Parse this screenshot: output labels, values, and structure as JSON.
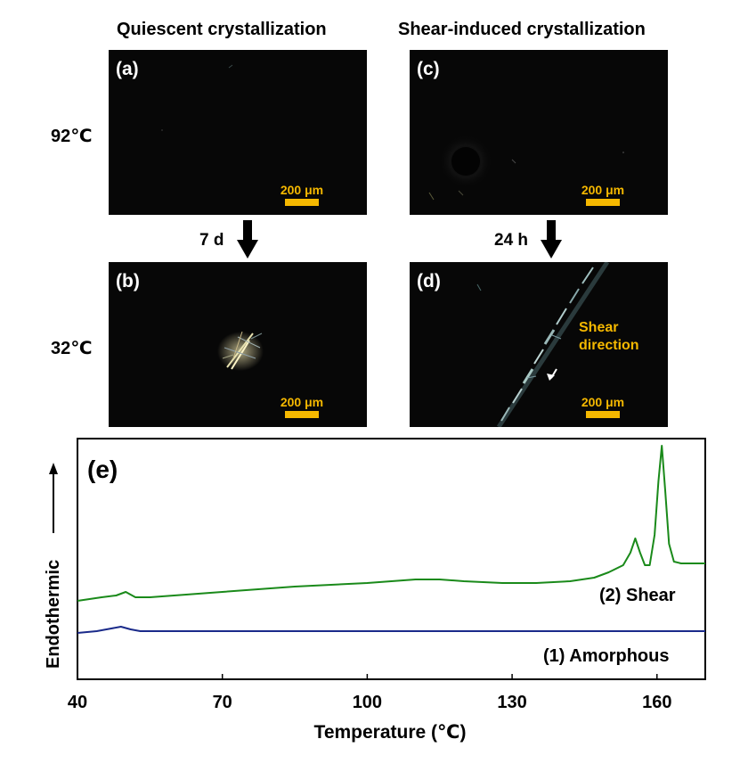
{
  "micrographs": {
    "col_titles": {
      "quiescent": "Quiescent crystallization",
      "shear": "Shear-induced crystallization"
    },
    "row_labels": {
      "top": "92℃",
      "bottom": "32℃"
    },
    "arrow_labels": {
      "left": "7 d",
      "right": "24 h"
    },
    "panels": {
      "a": {
        "letter": "(a)",
        "scale": "200 μm"
      },
      "b": {
        "letter": "(b)",
        "scale": "200 μm"
      },
      "c": {
        "letter": "(c)",
        "scale": "200 μm"
      },
      "d": {
        "letter": "(d)",
        "scale": "200 μm"
      }
    },
    "shear_label": {
      "line1": "Shear",
      "line2": "direction"
    },
    "colors": {
      "scale_bar": "#f5b800",
      "background": "#070707"
    }
  },
  "chart_data": {
    "type": "line",
    "panel_letter": "(e)",
    "xlabel": "Temperature (℃)",
    "ylabel": "Endothermic",
    "xlim": [
      40,
      170
    ],
    "xticks": [
      40,
      70,
      100,
      130,
      160
    ],
    "grid": false,
    "legend": "none",
    "series": [
      {
        "name": "(2) Shear",
        "color": "#1a8a1a",
        "x": [
          40,
          45,
          48,
          50,
          52,
          55,
          70,
          85,
          100,
          110,
          115,
          120,
          128,
          135,
          142,
          147,
          150,
          153,
          154.5,
          155.5,
          156.5,
          157.5,
          158.5,
          159.5,
          160.3,
          161,
          161.7,
          162.5,
          163.5,
          165,
          170
        ],
        "values": [
          0.18,
          0.2,
          0.21,
          0.23,
          0.2,
          0.2,
          0.23,
          0.26,
          0.28,
          0.3,
          0.3,
          0.29,
          0.28,
          0.28,
          0.29,
          0.31,
          0.34,
          0.38,
          0.45,
          0.53,
          0.45,
          0.38,
          0.38,
          0.55,
          0.85,
          1.05,
          0.8,
          0.5,
          0.4,
          0.39,
          0.39
        ]
      },
      {
        "name": "(1) Amorphous",
        "color": "#1a2a8a",
        "x": [
          40,
          44,
          47,
          49,
          51,
          53,
          60,
          90,
          120,
          150,
          170
        ],
        "values": [
          0.0,
          0.01,
          0.025,
          0.035,
          0.02,
          0.01,
          0.01,
          0.01,
          0.01,
          0.01,
          0.01
        ]
      }
    ],
    "annotations": [
      "(2) Shear",
      "(1) Amorphous"
    ]
  }
}
